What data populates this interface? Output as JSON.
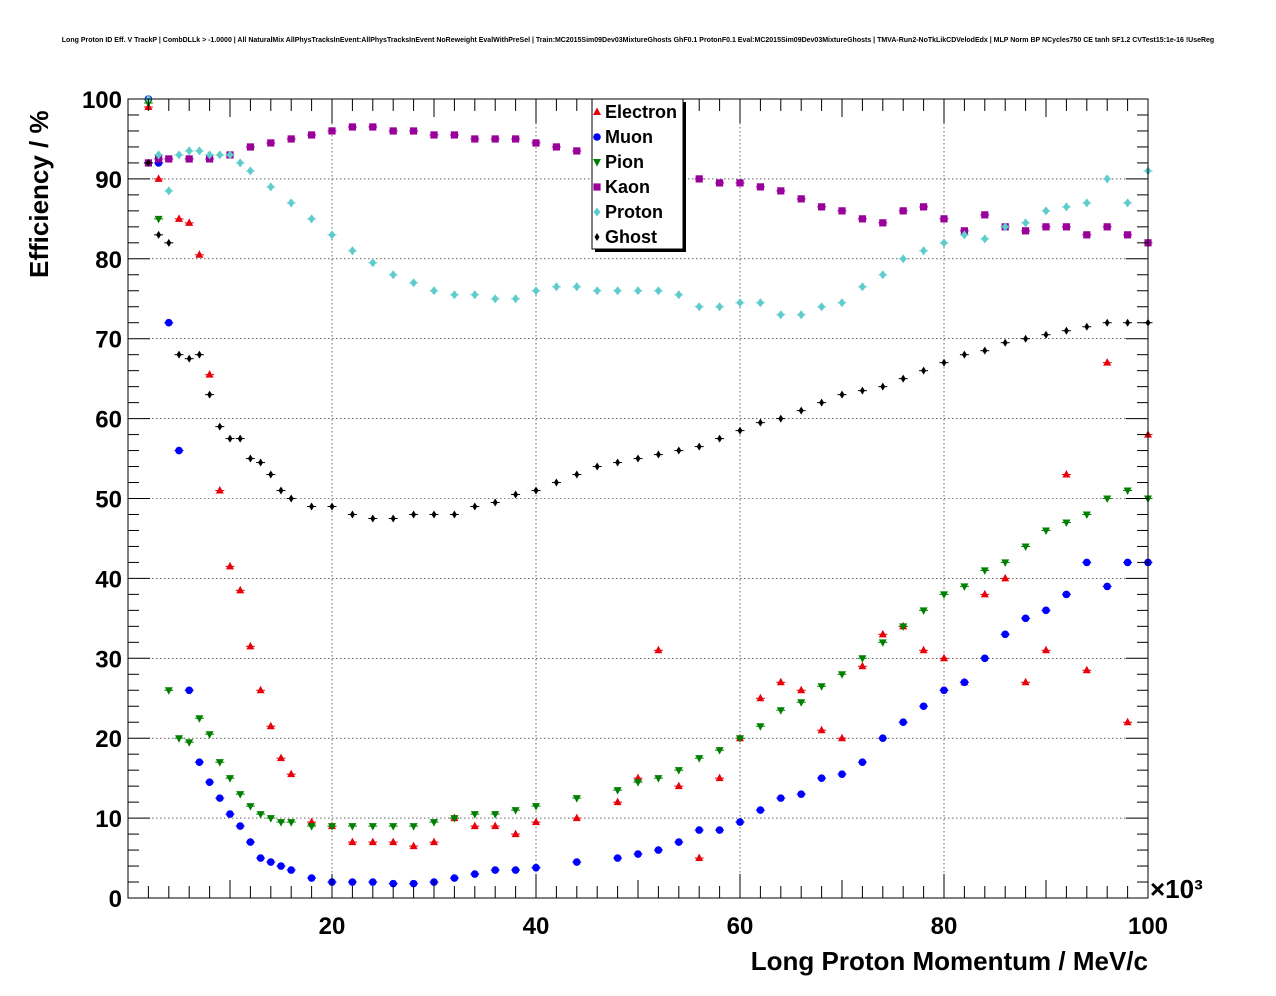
{
  "chart_data": {
    "type": "scatter",
    "title": "Long Proton ID Eff. V TrackP | CombDLLk > -1.0000 | All NaturalMix AllPhysTracksInEvent:AllPhysTracksInEvent NoReweight EvalWithPreSel | Train:MC2015Sim09Dev03MixtureGhosts GhF0.1 ProtonF0.1 Eval:MC2015Sim09Dev03MixtureGhosts | TMVA-Run2-NoTkLikCDVelodEdx | MLP Norm BP NCycles750 CE tanh SF1.2 CVTest15:1e-16 !UseReg",
    "xlabel": "Long Proton Momentum / MeV/c",
    "ylabel": "Efficiency / %",
    "x_multiplier": "×10³",
    "xlim": [
      0,
      100
    ],
    "ylim": [
      0,
      100
    ],
    "xticks": [
      "20",
      "40",
      "60",
      "80",
      "100"
    ],
    "yticks": [
      "0",
      "10",
      "20",
      "30",
      "40",
      "50",
      "60",
      "70",
      "80",
      "90",
      "100"
    ],
    "grid": true,
    "legend_position": "top-center",
    "series": [
      {
        "name": "Electron",
        "color": "#e8000b",
        "marker": "triangle-up",
        "x": [
          2,
          3,
          5,
          6,
          7,
          8,
          9,
          10,
          11,
          12,
          13,
          14,
          15,
          16,
          18,
          20,
          22,
          24,
          26,
          28,
          30,
          32,
          34,
          36,
          38,
          40,
          44,
          48,
          50,
          52,
          54,
          56,
          58,
          60,
          62,
          64,
          66,
          68,
          70,
          72,
          74,
          76,
          78,
          80,
          82,
          84,
          86,
          88,
          90,
          92,
          94,
          96,
          98,
          100
        ],
        "y": [
          99,
          90,
          85,
          84.5,
          80.5,
          65.5,
          51,
          41.5,
          38.5,
          31.5,
          26,
          21.5,
          17.5,
          15.5,
          9.5,
          9,
          7,
          7,
          7,
          6.5,
          7,
          10,
          9,
          9,
          8,
          9.5,
          10,
          12,
          15,
          31,
          14,
          5,
          15,
          20,
          25,
          27,
          26,
          21,
          20,
          29,
          33,
          34,
          31,
          30,
          27,
          38,
          40,
          27,
          31,
          53,
          28.5,
          67,
          22,
          58
        ]
      },
      {
        "name": "Muon",
        "color": "#0000ff",
        "marker": "circle",
        "x": [
          2,
          3,
          4,
          5,
          6,
          7,
          8,
          9,
          10,
          11,
          12,
          13,
          14,
          15,
          16,
          18,
          20,
          22,
          24,
          26,
          28,
          30,
          32,
          34,
          36,
          38,
          40,
          44,
          48,
          50,
          52,
          54,
          56,
          58,
          60,
          62,
          64,
          66,
          68,
          70,
          72,
          74,
          76,
          78,
          80,
          82,
          84,
          86,
          88,
          90,
          92,
          94,
          96,
          98,
          100
        ],
        "y": [
          100,
          92,
          72,
          56,
          26,
          17,
          14.5,
          12.5,
          10.5,
          9,
          7,
          5,
          4.5,
          4,
          3.5,
          2.5,
          2,
          2,
          2,
          1.8,
          1.8,
          2,
          2.5,
          3,
          3.5,
          3.5,
          3.8,
          4.5,
          5,
          5.5,
          6,
          7,
          8.5,
          8.5,
          9.5,
          11,
          12.5,
          13,
          15,
          15.5,
          17,
          20,
          22,
          24,
          26,
          27,
          30,
          33,
          35,
          36,
          38,
          42,
          39,
          42,
          42
        ]
      },
      {
        "name": "Pion",
        "color": "#008000",
        "marker": "triangle-down",
        "x": [
          2,
          3,
          4,
          5,
          6,
          7,
          8,
          9,
          10,
          11,
          12,
          13,
          14,
          15,
          16,
          18,
          20,
          22,
          24,
          26,
          28,
          30,
          32,
          34,
          36,
          38,
          40,
          44,
          48,
          50,
          52,
          54,
          56,
          58,
          60,
          62,
          64,
          66,
          68,
          70,
          72,
          74,
          76,
          78,
          80,
          82,
          84,
          86,
          88,
          90,
          92,
          94,
          96,
          98,
          100
        ],
        "y": [
          99.5,
          85,
          26,
          20,
          19.5,
          22.5,
          20.5,
          17,
          15,
          13,
          11.5,
          10.5,
          10,
          9.5,
          9.5,
          9,
          9,
          9,
          9,
          9,
          9,
          9.5,
          10,
          10.5,
          10.5,
          11,
          11.5,
          12.5,
          13.5,
          14.5,
          15,
          16,
          17.5,
          18.5,
          20,
          21.5,
          23.5,
          24.5,
          26.5,
          28,
          30,
          32,
          34,
          36,
          38,
          39,
          41,
          42,
          44,
          46,
          47,
          48,
          50,
          51,
          50
        ]
      },
      {
        "name": "Kaon",
        "color": "#990099",
        "marker": "square",
        "x": [
          2,
          3,
          4,
          6,
          8,
          10,
          12,
          14,
          16,
          18,
          20,
          22,
          24,
          26,
          28,
          30,
          32,
          34,
          36,
          38,
          40,
          42,
          44,
          46,
          48,
          50,
          52,
          54,
          56,
          58,
          60,
          62,
          64,
          66,
          68,
          70,
          72,
          74,
          76,
          78,
          80,
          82,
          84,
          86,
          88,
          90,
          92,
          94,
          96,
          98,
          100
        ],
        "y": [
          92,
          92.5,
          92.5,
          92.5,
          92.5,
          93,
          94,
          94.5,
          95,
          95.5,
          96,
          96.5,
          96.5,
          96,
          96,
          95.5,
          95.5,
          95,
          95,
          95,
          94.5,
          94,
          93.5,
          93,
          92.5,
          92,
          91.5,
          90.5,
          90,
          89.5,
          89.5,
          89,
          88.5,
          87.5,
          86.5,
          86,
          85,
          84.5,
          86,
          86.5,
          85,
          83.5,
          85.5,
          84,
          83.5,
          84,
          84,
          83,
          84,
          83,
          82
        ]
      },
      {
        "name": "Proton",
        "color": "#5fcccc",
        "marker": "diamond",
        "x": [
          2,
          3,
          4,
          5,
          6,
          7,
          8,
          9,
          10,
          11,
          12,
          14,
          16,
          18,
          20,
          22,
          24,
          26,
          28,
          30,
          32,
          34,
          36,
          38,
          40,
          42,
          44,
          46,
          48,
          50,
          52,
          54,
          56,
          58,
          60,
          62,
          64,
          66,
          68,
          70,
          72,
          74,
          76,
          78,
          80,
          82,
          84,
          86,
          88,
          90,
          92,
          94,
          96,
          98,
          100
        ],
        "y": [
          100,
          93,
          88.5,
          93,
          93.5,
          93.5,
          93,
          93,
          93,
          92,
          91,
          89,
          87,
          85,
          83,
          81,
          79.5,
          78,
          77,
          76,
          75.5,
          75.5,
          75,
          75,
          76,
          76.5,
          76.5,
          76,
          76,
          76,
          76,
          75.5,
          74,
          74,
          74.5,
          74.5,
          73,
          73,
          74,
          74.5,
          76.5,
          78,
          80,
          81,
          82,
          83,
          82.5,
          84,
          84.5,
          86,
          86.5,
          87,
          90,
          87,
          91
        ]
      },
      {
        "name": "Ghost",
        "color": "#000000",
        "marker": "cross",
        "x": [
          2,
          3,
          4,
          5,
          6,
          7,
          8,
          9,
          10,
          11,
          12,
          13,
          14,
          15,
          16,
          18,
          20,
          22,
          24,
          26,
          28,
          30,
          32,
          34,
          36,
          38,
          40,
          42,
          44,
          46,
          48,
          50,
          52,
          54,
          56,
          58,
          60,
          62,
          64,
          66,
          68,
          70,
          72,
          74,
          76,
          78,
          80,
          82,
          84,
          86,
          88,
          90,
          92,
          94,
          96,
          98,
          100
        ],
        "y": [
          92,
          83,
          82,
          68,
          67.5,
          68,
          63,
          59,
          57.5,
          57.5,
          55,
          54.5,
          53,
          51,
          50,
          49,
          49,
          48,
          47.5,
          47.5,
          48,
          48,
          48,
          49,
          49.5,
          50.5,
          51,
          52,
          53,
          54,
          54.5,
          55,
          55.5,
          56,
          56.5,
          57.5,
          58.5,
          59.5,
          60,
          61,
          62,
          63,
          63.5,
          64,
          65,
          66,
          67,
          68,
          68.5,
          69.5,
          70,
          70.5,
          71,
          71.5,
          72,
          72,
          72
        ]
      }
    ]
  }
}
